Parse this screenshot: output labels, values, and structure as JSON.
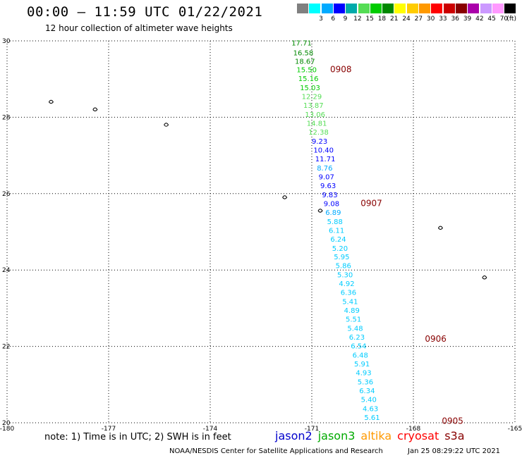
{
  "title": "00:00 – 11:59 UTC 01/22/2021",
  "subtitle": "12 hour collection of altimeter wave heights",
  "legend": {
    "unit": "(ft)",
    "labels": [
      "",
      "3",
      "6",
      "9",
      "12",
      "15",
      "18",
      "21",
      "24",
      "27",
      "30",
      "33",
      "36",
      "39",
      "42",
      "45",
      "70"
    ],
    "colors": [
      "#808080",
      "#00ffff",
      "#00aaff",
      "#0000ff",
      "#00aaaa",
      "#55dd55",
      "#00cc00",
      "#008800",
      "#ffff00",
      "#ffcc00",
      "#ff9900",
      "#ff0000",
      "#cc0000",
      "#880000",
      "#aa00aa",
      "#cc99ff",
      "#ff99ff",
      "#000000"
    ]
  },
  "map": {
    "lon_range": [
      -180,
      -165
    ],
    "lat_range": [
      20,
      30
    ],
    "lon_ticks": [
      "-180",
      "-177",
      "-174",
      "-171",
      "-168",
      "-165"
    ],
    "lat_ticks": [
      "20",
      "22",
      "24",
      "26",
      "28",
      "30"
    ],
    "tick_lon_values": [
      -180,
      -177,
      -174,
      -171,
      -168,
      -165
    ],
    "tick_lat_values": [
      20,
      22,
      24,
      26,
      28,
      30
    ],
    "grid": "dotted",
    "track_labels": [
      {
        "text": "0908",
        "lon": -171.0,
        "lat": 29.25
      },
      {
        "text": "0907",
        "lon": -170.1,
        "lat": 25.75
      },
      {
        "text": "0906",
        "lon": -168.2,
        "lat": 22.2
      },
      {
        "text": "0905",
        "lon": -167.7,
        "lat": 20.05
      }
    ],
    "track_label_color": "#880000",
    "observations": [
      {
        "value": "17.71",
        "lon": -171.6,
        "lat": 29.95,
        "color": "#008800"
      },
      {
        "value": "16.58",
        "lon": -171.55,
        "lat": 29.7,
        "color": "#008800"
      },
      {
        "value": "18.67",
        "lon": -171.5,
        "lat": 29.47,
        "color": "#008800"
      },
      {
        "value": "15.50",
        "lon": -171.45,
        "lat": 29.25,
        "color": "#00cc00"
      },
      {
        "value": "15.16",
        "lon": -171.4,
        "lat": 29.02,
        "color": "#00cc00"
      },
      {
        "value": "15.03",
        "lon": -171.35,
        "lat": 28.78,
        "color": "#00cc00"
      },
      {
        "value": "12.29",
        "lon": -171.3,
        "lat": 28.55,
        "color": "#55dd55"
      },
      {
        "value": "13.87",
        "lon": -171.25,
        "lat": 28.32,
        "color": "#55dd55"
      },
      {
        "value": "13.06",
        "lon": -171.2,
        "lat": 28.08,
        "color": "#55dd55"
      },
      {
        "value": "14.81",
        "lon": -171.15,
        "lat": 27.85,
        "color": "#55dd55"
      },
      {
        "value": "12.38",
        "lon": -171.1,
        "lat": 27.62,
        "color": "#55dd55"
      },
      {
        "value": "9.23",
        "lon": -171.0,
        "lat": 27.38,
        "color": "#0000ff"
      },
      {
        "value": "10.40",
        "lon": -170.95,
        "lat": 27.15,
        "color": "#0000ff"
      },
      {
        "value": "11.71",
        "lon": -170.9,
        "lat": 26.92,
        "color": "#0000ff"
      },
      {
        "value": "8.76",
        "lon": -170.85,
        "lat": 26.68,
        "color": "#00aaff"
      },
      {
        "value": "9.07",
        "lon": -170.8,
        "lat": 26.45,
        "color": "#0000ff"
      },
      {
        "value": "9.63",
        "lon": -170.75,
        "lat": 26.22,
        "color": "#0000ff"
      },
      {
        "value": "9.83",
        "lon": -170.7,
        "lat": 25.98,
        "color": "#0000ff"
      },
      {
        "value": "9.08",
        "lon": -170.65,
        "lat": 25.75,
        "color": "#0000ff"
      },
      {
        "value": "6.89",
        "lon": -170.6,
        "lat": 25.52,
        "color": "#00aaff"
      },
      {
        "value": "5.88",
        "lon": -170.55,
        "lat": 25.28,
        "color": "#00ccff"
      },
      {
        "value": "6.11",
        "lon": -170.5,
        "lat": 25.05,
        "color": "#00ccff"
      },
      {
        "value": "6.24",
        "lon": -170.45,
        "lat": 24.82,
        "color": "#00ccff"
      },
      {
        "value": "5.20",
        "lon": -170.4,
        "lat": 24.58,
        "color": "#00ccff"
      },
      {
        "value": "5.95",
        "lon": -170.35,
        "lat": 24.35,
        "color": "#00ccff"
      },
      {
        "value": "5.86",
        "lon": -170.3,
        "lat": 24.12,
        "color": "#00ccff"
      },
      {
        "value": "5.30",
        "lon": -170.25,
        "lat": 23.88,
        "color": "#00ccff"
      },
      {
        "value": "4.92",
        "lon": -170.2,
        "lat": 23.65,
        "color": "#00ccff"
      },
      {
        "value": "6.36",
        "lon": -170.15,
        "lat": 23.42,
        "color": "#00ccff"
      },
      {
        "value": "5.41",
        "lon": -170.1,
        "lat": 23.18,
        "color": "#00ccff"
      },
      {
        "value": "4.89",
        "lon": -170.05,
        "lat": 22.95,
        "color": "#00ccff"
      },
      {
        "value": "5.51",
        "lon": -170.0,
        "lat": 22.72,
        "color": "#00ccff"
      },
      {
        "value": "5.48",
        "lon": -169.95,
        "lat": 22.48,
        "color": "#00ccff"
      },
      {
        "value": "6.23",
        "lon": -169.9,
        "lat": 22.25,
        "color": "#00ccff"
      },
      {
        "value": "6.54",
        "lon": -169.85,
        "lat": 22.02,
        "color": "#00ccff"
      },
      {
        "value": "6.48",
        "lon": -169.8,
        "lat": 21.78,
        "color": "#00ccff"
      },
      {
        "value": "5.91",
        "lon": -169.75,
        "lat": 21.55,
        "color": "#00ccff"
      },
      {
        "value": "4.93",
        "lon": -169.7,
        "lat": 21.32,
        "color": "#00ccff"
      },
      {
        "value": "5.36",
        "lon": -169.65,
        "lat": 21.08,
        "color": "#00ccff"
      },
      {
        "value": "6.34",
        "lon": -169.6,
        "lat": 20.85,
        "color": "#00ccff"
      },
      {
        "value": "5.40",
        "lon": -169.55,
        "lat": 20.62,
        "color": "#00ccff"
      },
      {
        "value": "4.63",
        "lon": -169.5,
        "lat": 20.38,
        "color": "#00ccff"
      },
      {
        "value": "5.61",
        "lon": -169.45,
        "lat": 20.15,
        "color": "#00ccff"
      }
    ],
    "islands": [
      {
        "lon": -178.7,
        "lat": 28.4
      },
      {
        "lon": -177.4,
        "lat": 28.2
      },
      {
        "lon": -175.3,
        "lat": 27.8
      },
      {
        "lon": -171.8,
        "lat": 25.9
      },
      {
        "lon": -170.75,
        "lat": 25.55
      },
      {
        "lon": -167.2,
        "lat": 25.1
      },
      {
        "lon": -165.9,
        "lat": 23.8
      }
    ]
  },
  "note": "note:  1) Time is in UTC;  2) SWH is in feet",
  "satellites": [
    {
      "name": "jason2",
      "color": "#0000cc"
    },
    {
      "name": "jason3",
      "color": "#00aa00"
    },
    {
      "name": "altika",
      "color": "#ff9900"
    },
    {
      "name": "cryosat",
      "color": "#ff0000"
    },
    {
      "name": "s3a",
      "color": "#880000"
    }
  ],
  "credit": "NOAA/NESDIS Center for Satellite Applications and Research",
  "timestamp": "Jan 25 08:29:22 UTC 2021"
}
